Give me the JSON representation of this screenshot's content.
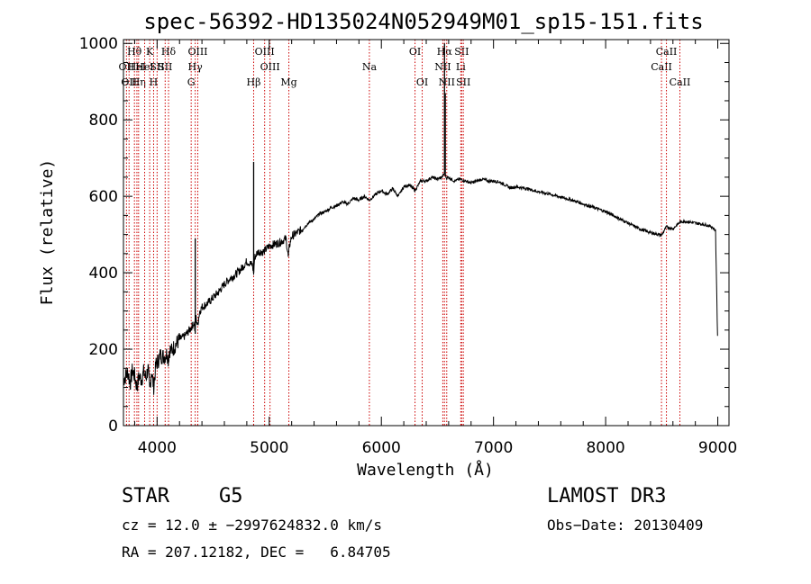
{
  "chart_data": {
    "type": "line",
    "title": "spec-56392-HD135024N052949M01_sp15-151.fits",
    "xlabel": "Wavelength (Å)",
    "ylabel": "Flux (relative)",
    "xlim": [
      3700,
      9100
    ],
    "ylim": [
      0,
      1010
    ],
    "xticks": [
      4000,
      5000,
      6000,
      7000,
      8000,
      9000
    ],
    "yticks": [
      0,
      200,
      400,
      600,
      800,
      1000
    ],
    "xtick_labels": [
      "4000",
      "5000",
      "6000",
      "7000",
      "8000",
      "9000"
    ],
    "ytick_labels": [
      "0",
      "200",
      "400",
      "600",
      "800",
      "1000"
    ],
    "series": [
      {
        "name": "spectrum",
        "x": [
          3700,
          3720,
          3740,
          3760,
          3780,
          3800,
          3820,
          3840,
          3860,
          3880,
          3900,
          3920,
          3934,
          3950,
          3969,
          3990,
          4010,
          4030,
          4060,
          4090,
          4101,
          4110,
          4130,
          4160,
          4200,
          4250,
          4300,
          4330,
          4340,
          4345,
          4350,
          4360,
          4380,
          4400,
          4450,
          4500,
          4550,
          4600,
          4650,
          4700,
          4750,
          4800,
          4850,
          4861,
          4870,
          4900,
          4950,
          5000,
          5050,
          5100,
          5150,
          5170,
          5180,
          5200,
          5250,
          5300,
          5350,
          5400,
          5450,
          5500,
          5550,
          5600,
          5650,
          5700,
          5750,
          5800,
          5850,
          5893,
          5950,
          6000,
          6050,
          6100,
          6150,
          6200,
          6250,
          6300,
          6350,
          6400,
          6450,
          6500,
          6540,
          6563,
          6580,
          6600,
          6650,
          6700,
          6750,
          6800,
          6850,
          6900,
          6950,
          7000,
          7050,
          7100,
          7150,
          7200,
          7300,
          7400,
          7500,
          7600,
          7700,
          7800,
          7900,
          8000,
          8100,
          8200,
          8300,
          8400,
          8498,
          8542,
          8600,
          8662,
          8700,
          8800,
          8900,
          8950,
          8980,
          9000
        ],
        "values": [
          120,
          130,
          140,
          110,
          145,
          130,
          100,
          130,
          120,
          140,
          125,
          150,
          90,
          145,
          100,
          160,
          170,
          185,
          180,
          190,
          170,
          200,
          195,
          210,
          225,
          235,
          255,
          270,
          240,
          285,
          280,
          260,
          300,
          310,
          320,
          335,
          350,
          370,
          385,
          395,
          410,
          430,
          420,
          400,
          440,
          455,
          455,
          470,
          475,
          480,
          490,
          440,
          470,
          495,
          505,
          515,
          530,
          540,
          555,
          560,
          570,
          575,
          585,
          580,
          595,
          590,
          600,
          590,
          605,
          615,
          605,
          620,
          600,
          625,
          630,
          615,
          640,
          640,
          650,
          645,
          650,
          660,
          648,
          650,
          640,
          645,
          640,
          635,
          640,
          645,
          640,
          640,
          638,
          630,
          622,
          625,
          620,
          612,
          606,
          598,
          590,
          580,
          570,
          560,
          545,
          530,
          515,
          505,
          498,
          520,
          515,
          532,
          535,
          530,
          525,
          520,
          510,
          200
        ]
      }
    ],
    "spike_lines": [
      {
        "x": 4340,
        "peak": 490
      },
      {
        "x": 4861,
        "peak": 690
      },
      {
        "x": 6563,
        "peak": 1000
      },
      {
        "x": 6570,
        "peak": 870
      }
    ],
    "line_markers": [
      {
        "x": 3727,
        "label": "OII",
        "row": 2
      },
      {
        "x": 3750,
        "label": "OII",
        "row": 3
      },
      {
        "x": 3798,
        "label": "Hθ",
        "row": 1
      },
      {
        "x": 3820,
        "label": "HeI",
        "row": 2
      },
      {
        "x": 3835,
        "label": "Hη",
        "row": 3
      },
      {
        "x": 3889,
        "label": "HeI",
        "row": 2
      },
      {
        "x": 3934,
        "label": "K",
        "row": 1
      },
      {
        "x": 3969,
        "label": "H",
        "row": 3
      },
      {
        "x": 4000,
        "label": "SII",
        "row": 2
      },
      {
        "x": 4072,
        "label": "SII",
        "row": 2
      },
      {
        "x": 4102,
        "label": "Hδ",
        "row": 1
      },
      {
        "x": 4304,
        "label": "G",
        "row": 3
      },
      {
        "x": 4340,
        "label": "Hγ",
        "row": 2
      },
      {
        "x": 4363,
        "label": "OIII",
        "row": 1
      },
      {
        "x": 4861,
        "label": "Hβ",
        "row": 3
      },
      {
        "x": 4959,
        "label": "OIII",
        "row": 1
      },
      {
        "x": 5007,
        "label": "OIII",
        "row": 2
      },
      {
        "x": 5175,
        "label": "Mg",
        "row": 3
      },
      {
        "x": 5893,
        "label": "Na",
        "row": 2
      },
      {
        "x": 6300,
        "label": "OI",
        "row": 1
      },
      {
        "x": 6364,
        "label": "OI",
        "row": 3
      },
      {
        "x": 6548,
        "label": "NII",
        "row": 2
      },
      {
        "x": 6563,
        "label": "Hα",
        "row": 1
      },
      {
        "x": 6583,
        "label": "NII",
        "row": 3
      },
      {
        "x": 6708,
        "label": "Li",
        "row": 2
      },
      {
        "x": 6716,
        "label": "SII",
        "row": 1
      },
      {
        "x": 6731,
        "label": "SII",
        "row": 3
      },
      {
        "x": 8498,
        "label": "CaII",
        "row": 2
      },
      {
        "x": 8542,
        "label": "CaII",
        "row": 1
      },
      {
        "x": 8662,
        "label": "CaII",
        "row": 3
      }
    ],
    "colors": {
      "spectrum": "#000000",
      "marker": "#cc0000",
      "axis": "#000000"
    }
  },
  "info": {
    "class": "STAR",
    "subclass": "G5",
    "survey": "LAMOST DR3",
    "redshift": "cz = 12.0 ± −2997624832.0 km/s",
    "obs_date": "Obs−Date: 20130409",
    "coords": "RA = 207.12182, DEC =   6.84705"
  }
}
